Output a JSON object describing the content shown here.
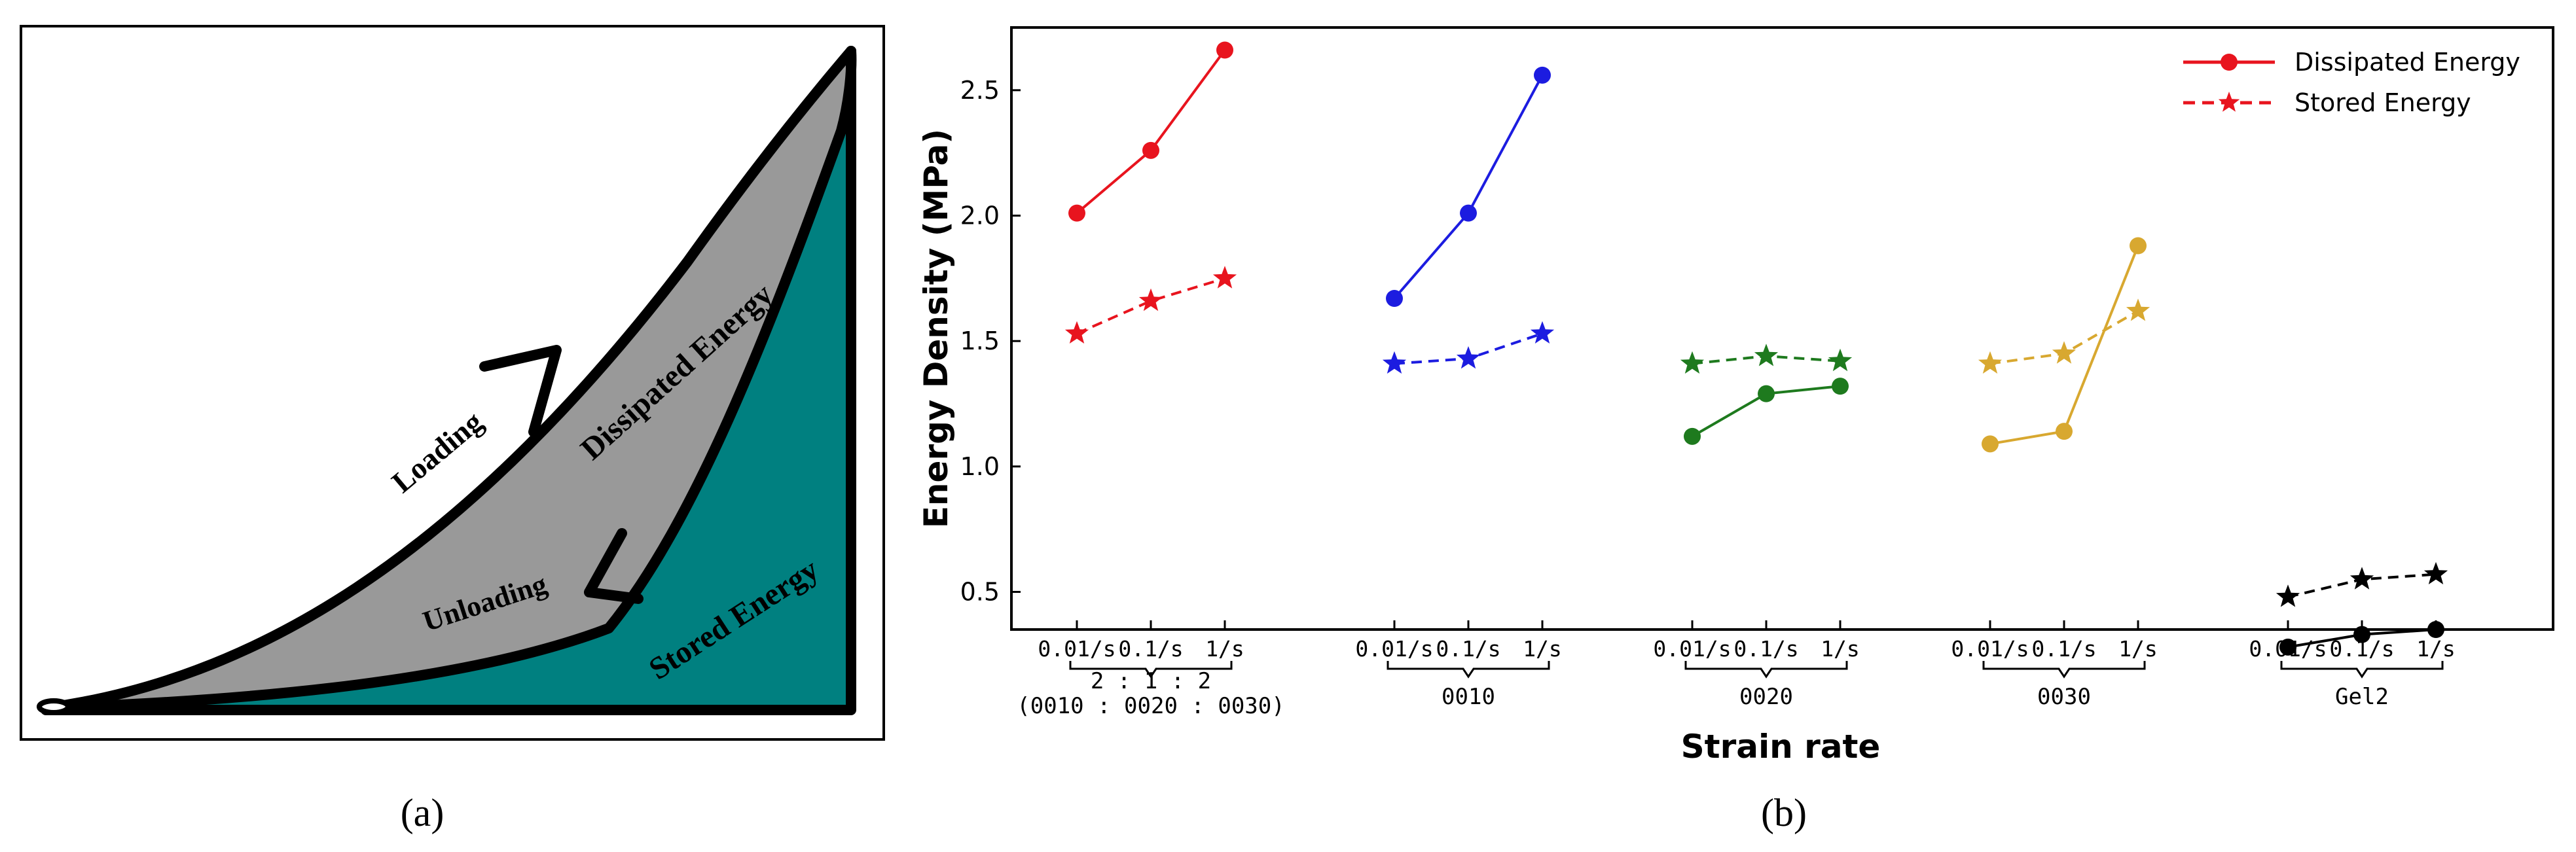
{
  "panel_a": {
    "caption": "(a)",
    "labels": {
      "loading": "Loading",
      "unloading": "Unloading",
      "dissipated": "Dissipated Energy",
      "stored": "Stored Energy"
    },
    "colors": {
      "dissipated": "#999999",
      "stored": "#008080",
      "outline": "#000000"
    }
  },
  "panel_b": {
    "caption": "(b)",
    "colors": {
      "set1": "#e8141e",
      "set2": "#1c1ce0",
      "set3": "#1e7a1e",
      "set4": "#d8a830",
      "set5": "#000000"
    }
  },
  "chart_data": {
    "type": "line",
    "title": "",
    "xlabel": "Strain rate",
    "ylabel": "Energy Density (MPa)",
    "ylim": [
      0.35,
      2.75
    ],
    "yticks": [
      "0.5",
      "1.0",
      "1.5",
      "2.0",
      "2.5"
    ],
    "ytick_values": [
      0.5,
      1.0,
      1.5,
      2.0,
      2.5
    ],
    "grid": false,
    "legend_position": "top-right",
    "legend": [
      {
        "name": "Dissipated Energy",
        "style": "solid",
        "marker": "circle"
      },
      {
        "name": "Stored Energy",
        "style": "dashed",
        "marker": "star"
      }
    ],
    "groups": [
      {
        "name": "2 : 1 : 2",
        "subname": "(0010 : 0020 : 0030)",
        "color": "#e8141e",
        "strain_rates": [
          "0.01/s",
          "0.1/s",
          "1/s"
        ],
        "dissipated": [
          2.01,
          2.26,
          2.66
        ],
        "stored": [
          1.53,
          1.66,
          1.75
        ]
      },
      {
        "name": "0010",
        "color": "#1c1ce0",
        "strain_rates": [
          "0.01/s",
          "0.1/s",
          "1/s"
        ],
        "dissipated": [
          1.67,
          2.01,
          2.56
        ],
        "stored": [
          1.41,
          1.43,
          1.53
        ]
      },
      {
        "name": "0020",
        "color": "#1e7a1e",
        "strain_rates": [
          "0.01/s",
          "0.1/s",
          "1/s"
        ],
        "dissipated": [
          1.12,
          1.29,
          1.32
        ],
        "stored": [
          1.41,
          1.44,
          1.42
        ]
      },
      {
        "name": "0030",
        "color": "#d8a830",
        "strain_rates": [
          "0.01/s",
          "0.1/s",
          "1/s"
        ],
        "dissipated": [
          1.09,
          1.14,
          1.88
        ],
        "stored": [
          1.41,
          1.45,
          1.62
        ]
      },
      {
        "name": "Gel2",
        "color": "#000000",
        "strain_rates": [
          "0.01/s",
          "0.1/s",
          "1/s"
        ],
        "dissipated": [
          0.28,
          0.33,
          0.35
        ],
        "stored": [
          0.48,
          0.55,
          0.57
        ]
      }
    ]
  }
}
